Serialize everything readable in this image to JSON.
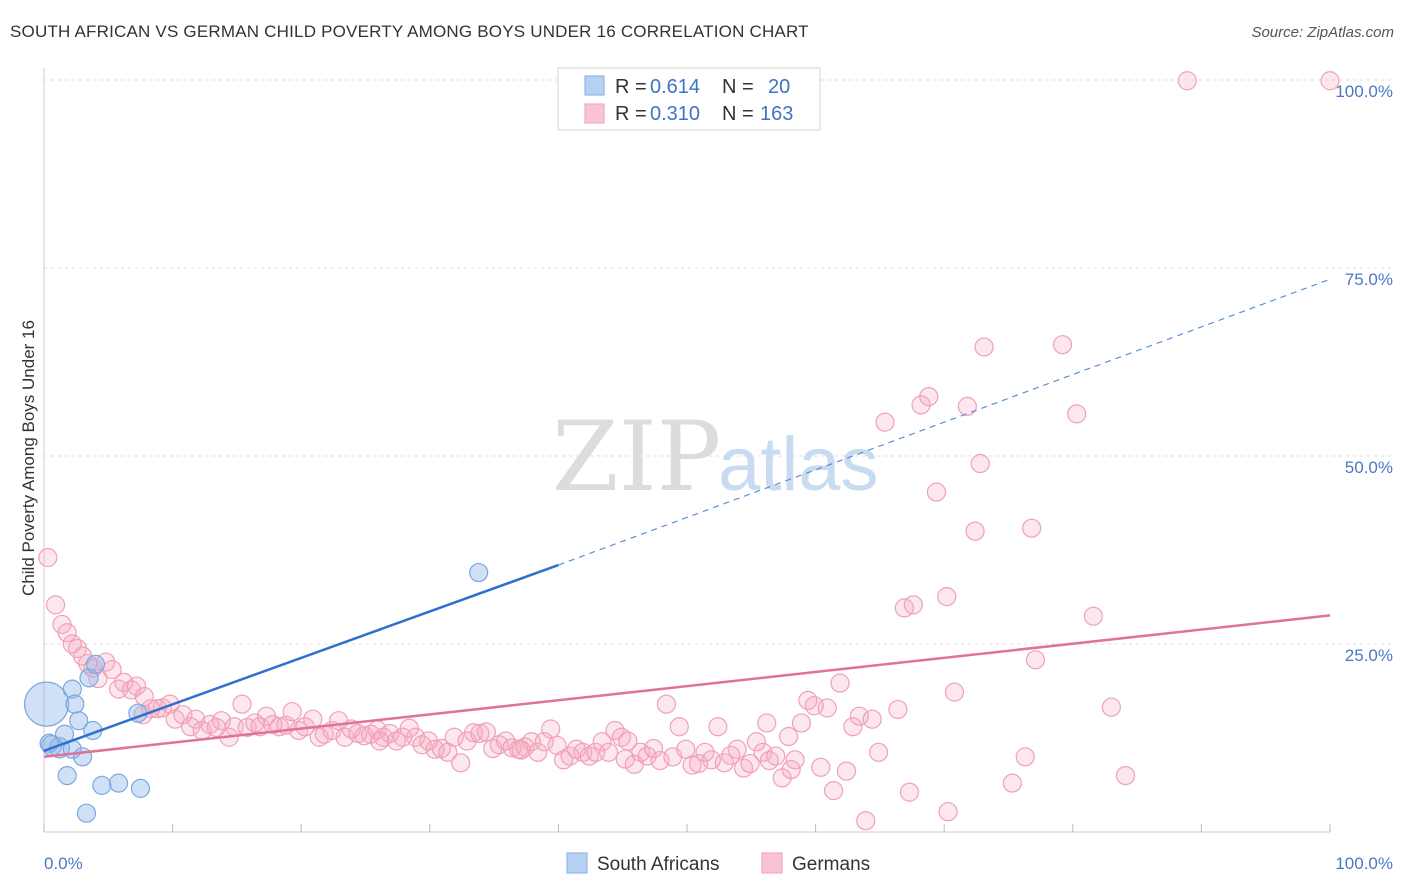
{
  "chart_data": {
    "type": "scatter",
    "title": "SOUTH AFRICAN VS GERMAN CHILD POVERTY AMONG BOYS UNDER 16 CORRELATION CHART",
    "source": "Source: ZipAtlas.com",
    "ylabel": "Child Poverty Among Boys Under 16",
    "xlabel": "",
    "xlim": [
      0,
      100
    ],
    "ylim": [
      0,
      100
    ],
    "x_tick_labels": [
      "0.0%",
      "100.0%"
    ],
    "y_tick_labels": [
      "25.0%",
      "50.0%",
      "75.0%",
      "100.0%"
    ],
    "y_ticks": [
      25,
      50,
      75,
      100
    ],
    "grid": true,
    "legend_position": "top-center",
    "watermark": {
      "part1": "ZIP",
      "part2": "atlas"
    },
    "legend": [
      {
        "r_label": "R =",
        "r_value": "0.614",
        "n_label": "N =",
        "n_value": "20"
      },
      {
        "r_label": "R =",
        "r_value": "0.310",
        "n_label": "N =",
        "n_value": "163"
      }
    ],
    "series": [
      {
        "name": "South Africans",
        "color": "#8fb8ea",
        "line_color": "#2f6fd0",
        "trend": {
          "x0": 0,
          "y0": 10.8,
          "x1": 40,
          "y1": 35.5,
          "dash_to_x": 100,
          "dash_to_y": 73.5
        },
        "points": [
          [
            0.2,
            17,
            22
          ],
          [
            0.6,
            11.5,
            10
          ],
          [
            1.2,
            11.2,
            10
          ],
          [
            1.6,
            13,
            9
          ],
          [
            1.8,
            7.5,
            9
          ],
          [
            2.2,
            11,
            9
          ],
          [
            2.2,
            19,
            9
          ],
          [
            2.4,
            17,
            9
          ],
          [
            2.7,
            14.8,
            9
          ],
          [
            3.0,
            10,
            9
          ],
          [
            3.3,
            2.5,
            9
          ],
          [
            3.5,
            20.5,
            9
          ],
          [
            3.8,
            13.5,
            9
          ],
          [
            4.0,
            22.3,
            9
          ],
          [
            4.5,
            6.2,
            9
          ],
          [
            5.8,
            6.5,
            9
          ],
          [
            7.3,
            15.8,
            9
          ],
          [
            7.5,
            5.8,
            9
          ],
          [
            33.8,
            34.5,
            9
          ],
          [
            0.4,
            11.8,
            9
          ]
        ]
      },
      {
        "name": "Germans",
        "color": "#f4a9c0",
        "line_color": "#e0729a",
        "trend": {
          "x0": 0,
          "y0": 10.0,
          "x1": 100,
          "y1": 28.8
        },
        "points": [
          [
            0.3,
            36.5
          ],
          [
            0.9,
            30.2
          ],
          [
            1.4,
            27.6
          ],
          [
            1.8,
            26.5
          ],
          [
            2.2,
            25
          ],
          [
            2.6,
            24.4
          ],
          [
            3.0,
            23.4
          ],
          [
            3.4,
            22.4
          ],
          [
            3.8,
            21.8
          ],
          [
            4.2,
            20.4
          ],
          [
            4.8,
            22.6
          ],
          [
            5.3,
            21.6
          ],
          [
            5.8,
            19.0
          ],
          [
            6.2,
            19.9
          ],
          [
            6.8,
            18.9
          ],
          [
            7.2,
            19.4
          ],
          [
            7.8,
            18.0
          ],
          [
            8.3,
            16.4
          ],
          [
            8.8,
            16.4
          ],
          [
            9.2,
            16.5
          ],
          [
            9.8,
            17.0
          ],
          [
            10.2,
            15.0
          ],
          [
            10.8,
            15.6
          ],
          [
            11.4,
            14.0
          ],
          [
            11.8,
            15.0
          ],
          [
            12.3,
            13.5
          ],
          [
            12.9,
            14.3
          ],
          [
            13.4,
            13.9
          ],
          [
            13.8,
            14.8
          ],
          [
            14.4,
            12.6
          ],
          [
            14.8,
            14.0
          ],
          [
            15.4,
            17.0
          ],
          [
            15.8,
            13.9
          ],
          [
            16.4,
            14.5
          ],
          [
            16.8,
            14.0
          ],
          [
            17.3,
            15.4
          ],
          [
            17.8,
            14.3
          ],
          [
            18.3,
            14.0
          ],
          [
            18.8,
            14.2
          ],
          [
            19.3,
            16.0
          ],
          [
            19.8,
            13.5
          ],
          [
            20.3,
            14.0
          ],
          [
            20.9,
            15.0
          ],
          [
            21.4,
            12.6
          ],
          [
            21.8,
            13.0
          ],
          [
            22.4,
            13.5
          ],
          [
            22.9,
            14.8
          ],
          [
            23.4,
            12.6
          ],
          [
            23.9,
            13.7
          ],
          [
            24.4,
            13.1
          ],
          [
            24.9,
            12.8
          ],
          [
            25.4,
            13.0
          ],
          [
            25.9,
            13.6
          ],
          [
            26.4,
            12.6
          ],
          [
            26.9,
            13.1
          ],
          [
            27.4,
            12.1
          ],
          [
            27.9,
            12.6
          ],
          [
            28.4,
            13.8
          ],
          [
            28.9,
            12.6
          ],
          [
            29.4,
            11.6
          ],
          [
            29.9,
            12.1
          ],
          [
            30.4,
            11.0
          ],
          [
            30.9,
            11.1
          ],
          [
            31.4,
            10.6
          ],
          [
            31.9,
            12.6
          ],
          [
            32.4,
            9.2
          ],
          [
            32.9,
            12.1
          ],
          [
            33.4,
            13.2
          ],
          [
            33.9,
            13.1
          ],
          [
            34.4,
            13.3
          ],
          [
            34.9,
            11.1
          ],
          [
            35.4,
            11.6
          ],
          [
            35.9,
            12.1
          ],
          [
            36.4,
            11.2
          ],
          [
            36.9,
            11.0
          ],
          [
            37.4,
            11.3
          ],
          [
            37.9,
            12.0
          ],
          [
            38.4,
            10.6
          ],
          [
            38.9,
            12.0
          ],
          [
            39.4,
            13.7
          ],
          [
            39.9,
            11.5
          ],
          [
            40.4,
            9.6
          ],
          [
            40.9,
            10.1
          ],
          [
            41.4,
            11.0
          ],
          [
            41.9,
            10.6
          ],
          [
            42.4,
            10.1
          ],
          [
            42.9,
            10.6
          ],
          [
            43.4,
            12.0
          ],
          [
            43.9,
            10.6
          ],
          [
            44.4,
            13.5
          ],
          [
            44.9,
            12.6
          ],
          [
            45.4,
            12.1
          ],
          [
            45.9,
            9.0
          ],
          [
            46.4,
            10.6
          ],
          [
            46.9,
            10.1
          ],
          [
            47.4,
            11.1
          ],
          [
            47.9,
            9.5
          ],
          [
            48.4,
            17.0
          ],
          [
            48.9,
            10.0
          ],
          [
            49.4,
            14.0
          ],
          [
            49.9,
            11.0
          ],
          [
            50.4,
            8.9
          ],
          [
            50.9,
            9.1
          ],
          [
            51.4,
            10.6
          ],
          [
            51.9,
            9.6
          ],
          [
            52.4,
            14.0
          ],
          [
            52.9,
            9.2
          ],
          [
            53.4,
            10.2
          ],
          [
            53.9,
            11.0
          ],
          [
            54.4,
            8.5
          ],
          [
            54.9,
            9.1
          ],
          [
            55.4,
            12.0
          ],
          [
            55.9,
            10.6
          ],
          [
            56.4,
            9.5
          ],
          [
            56.9,
            10.1
          ],
          [
            57.4,
            7.2
          ],
          [
            57.9,
            12.7
          ],
          [
            58.4,
            9.6
          ],
          [
            58.9,
            14.5
          ],
          [
            59.4,
            17.5
          ],
          [
            59.9,
            16.8
          ],
          [
            60.4,
            8.6
          ],
          [
            60.9,
            16.5
          ],
          [
            61.4,
            5.5
          ],
          [
            61.9,
            19.8
          ],
          [
            62.4,
            8.1
          ],
          [
            62.9,
            14.0
          ],
          [
            63.4,
            15.4
          ],
          [
            63.9,
            1.5
          ],
          [
            64.4,
            15.0
          ],
          [
            64.9,
            10.6
          ],
          [
            65.4,
            54.5
          ],
          [
            66.4,
            16.3
          ],
          [
            66.9,
            29.8
          ],
          [
            67.3,
            5.3
          ],
          [
            67.6,
            30.2
          ],
          [
            68.2,
            56.8
          ],
          [
            68.8,
            57.9
          ],
          [
            69.4,
            45.2
          ],
          [
            70.2,
            31.3
          ],
          [
            71.8,
            56.6
          ],
          [
            72.4,
            40.0
          ],
          [
            72.8,
            49.0
          ],
          [
            73.1,
            64.5
          ],
          [
            75.3,
            6.5
          ],
          [
            76.3,
            10.0
          ],
          [
            76.8,
            40.4
          ],
          [
            77.1,
            22.9
          ],
          [
            79.2,
            64.8
          ],
          [
            80.3,
            55.6
          ],
          [
            81.6,
            28.7
          ],
          [
            83.0,
            16.6
          ],
          [
            84.1,
            7.5
          ],
          [
            70.3,
            2.7
          ],
          [
            70.8,
            18.6
          ],
          [
            88.9,
            99.9
          ],
          [
            100.0,
            99.9
          ],
          [
            7.7,
            15.6
          ],
          [
            26.1,
            12.1
          ],
          [
            37.1,
            10.9
          ],
          [
            45.2,
            9.7
          ],
          [
            56.2,
            14.5
          ],
          [
            58.1,
            8.3
          ]
        ]
      }
    ]
  }
}
